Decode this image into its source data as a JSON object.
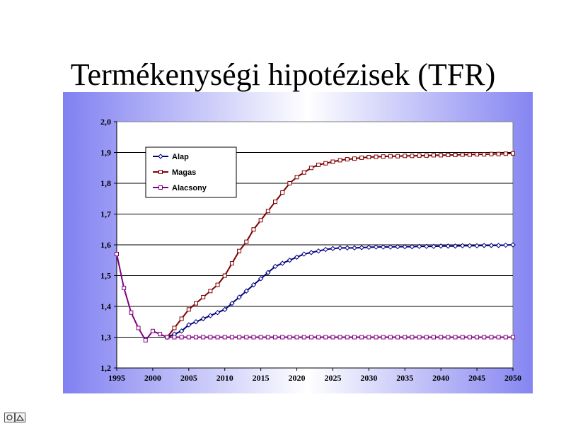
{
  "slide": {
    "title": "Termékenységi hipotézisek (TFR)",
    "colors": {
      "panel_left": "#8080f2",
      "panel_mid": "#ffffff",
      "panel_right": "#8585f2"
    }
  },
  "chart_data": {
    "type": "line",
    "title": "",
    "xlabel": "",
    "ylabel": "",
    "xlim": [
      1995,
      2050
    ],
    "ylim": [
      1.2,
      2.0
    ],
    "x_ticks": [
      "1995",
      "2000",
      "2005",
      "2010",
      "2015",
      "2020",
      "2025",
      "2030",
      "2035",
      "2040",
      "2045",
      "2050"
    ],
    "y_ticks": [
      "1,2",
      "1,3",
      "1,4",
      "1,5",
      "1,6",
      "1,7",
      "1,8",
      "1,9",
      "2,0"
    ],
    "grid": "horizontal",
    "legend_position": "top-left",
    "shared_history": {
      "x": [
        1995,
        1996,
        1997,
        1998,
        1999,
        2000,
        2001,
        2002
      ],
      "values": [
        1.57,
        1.46,
        1.38,
        1.33,
        1.29,
        1.32,
        1.31,
        1.3
      ]
    },
    "series": [
      {
        "name": "Alap",
        "color": "#000080",
        "marker": "diamond",
        "x": [
          2002,
          2003,
          2004,
          2005,
          2006,
          2007,
          2008,
          2009,
          2010,
          2011,
          2012,
          2013,
          2014,
          2015,
          2016,
          2017,
          2018,
          2019,
          2020,
          2021,
          2022,
          2023,
          2024,
          2025,
          2026,
          2027,
          2028,
          2029,
          2030,
          2031,
          2032,
          2033,
          2034,
          2035,
          2036,
          2037,
          2038,
          2039,
          2040,
          2041,
          2042,
          2043,
          2044,
          2045,
          2046,
          2047,
          2048,
          2049,
          2050
        ],
        "values": [
          1.3,
          1.31,
          1.32,
          1.34,
          1.35,
          1.36,
          1.37,
          1.38,
          1.39,
          1.41,
          1.43,
          1.45,
          1.47,
          1.49,
          1.51,
          1.53,
          1.54,
          1.55,
          1.56,
          1.57,
          1.575,
          1.58,
          1.585,
          1.588,
          1.59,
          1.59,
          1.59,
          1.591,
          1.592,
          1.593,
          1.593,
          1.593,
          1.594,
          1.594,
          1.594,
          1.595,
          1.595,
          1.595,
          1.596,
          1.596,
          1.596,
          1.597,
          1.597,
          1.597,
          1.598,
          1.598,
          1.598,
          1.599,
          1.6
        ]
      },
      {
        "name": "Magas",
        "color": "#800000",
        "marker": "square",
        "x": [
          2002,
          2003,
          2004,
          2005,
          2006,
          2007,
          2008,
          2009,
          2010,
          2011,
          2012,
          2013,
          2014,
          2015,
          2016,
          2017,
          2018,
          2019,
          2020,
          2021,
          2022,
          2023,
          2024,
          2025,
          2026,
          2027,
          2028,
          2029,
          2030,
          2031,
          2032,
          2033,
          2034,
          2035,
          2036,
          2037,
          2038,
          2039,
          2040,
          2041,
          2042,
          2043,
          2044,
          2045,
          2046,
          2047,
          2048,
          2049,
          2050
        ],
        "values": [
          1.3,
          1.33,
          1.36,
          1.39,
          1.41,
          1.43,
          1.45,
          1.47,
          1.5,
          1.54,
          1.58,
          1.61,
          1.65,
          1.68,
          1.71,
          1.74,
          1.77,
          1.8,
          1.82,
          1.835,
          1.85,
          1.86,
          1.865,
          1.87,
          1.875,
          1.878,
          1.88,
          1.883,
          1.885,
          1.886,
          1.887,
          1.888,
          1.888,
          1.889,
          1.889,
          1.89,
          1.89,
          1.891,
          1.891,
          1.892,
          1.892,
          1.893,
          1.893,
          1.894,
          1.894,
          1.895,
          1.895,
          1.896,
          1.897
        ]
      },
      {
        "name": "Alacsony",
        "color": "#800080",
        "marker": "square",
        "x": [
          2002,
          2003,
          2004,
          2005,
          2006,
          2007,
          2008,
          2009,
          2010,
          2011,
          2012,
          2013,
          2014,
          2015,
          2016,
          2017,
          2018,
          2019,
          2020,
          2021,
          2022,
          2023,
          2024,
          2025,
          2026,
          2027,
          2028,
          2029,
          2030,
          2031,
          2032,
          2033,
          2034,
          2035,
          2036,
          2037,
          2038,
          2039,
          2040,
          2041,
          2042,
          2043,
          2044,
          2045,
          2046,
          2047,
          2048,
          2049,
          2050
        ],
        "values": [
          1.3,
          1.3,
          1.3,
          1.3,
          1.3,
          1.3,
          1.3,
          1.3,
          1.3,
          1.3,
          1.3,
          1.3,
          1.3,
          1.3,
          1.3,
          1.3,
          1.3,
          1.3,
          1.3,
          1.3,
          1.3,
          1.3,
          1.3,
          1.3,
          1.3,
          1.3,
          1.3,
          1.3,
          1.3,
          1.3,
          1.3,
          1.3,
          1.3,
          1.3,
          1.3,
          1.3,
          1.3,
          1.3,
          1.3,
          1.3,
          1.3,
          1.3,
          1.3,
          1.3,
          1.3,
          1.3,
          1.3,
          1.3,
          1.3
        ]
      }
    ],
    "history_color": "#800080"
  },
  "nav": {
    "icon": "slide-nav-icon"
  }
}
